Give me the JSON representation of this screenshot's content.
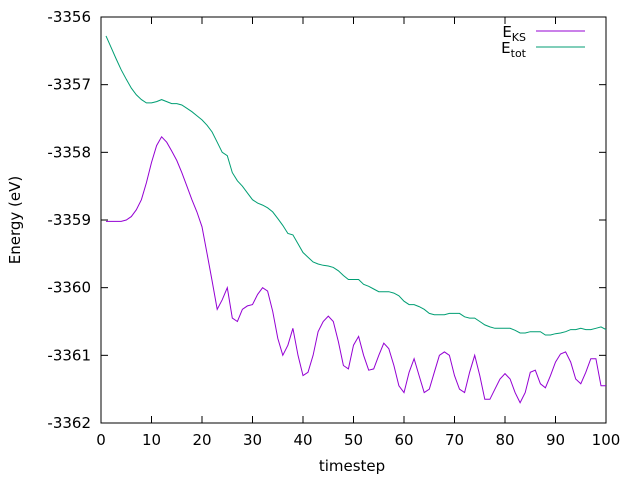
{
  "chart_data": {
    "type": "line",
    "xlabel": "timestep",
    "ylabel": "Energy (eV)",
    "xlim": [
      0,
      100
    ],
    "ylim": [
      -3362,
      -3356
    ],
    "xticks": [
      "0",
      "10",
      "20",
      "30",
      "40",
      "50",
      "60",
      "70",
      "80",
      "90",
      "100"
    ],
    "yticks": [
      "-3356",
      "-3357",
      "-3358",
      "-3359",
      "-3360",
      "-3361",
      "-3362"
    ],
    "grid": false,
    "legend_position": "top-right",
    "series": [
      {
        "name": "E",
        "subscript": "KS",
        "color": "#9400d3",
        "x": [
          1,
          2,
          3,
          4,
          5,
          6,
          7,
          8,
          9,
          10,
          11,
          12,
          13,
          14,
          15,
          16,
          17,
          18,
          19,
          20,
          21,
          22,
          23,
          24,
          25,
          26,
          27,
          28,
          29,
          30,
          31,
          32,
          33,
          34,
          35,
          36,
          37,
          38,
          39,
          40,
          41,
          42,
          43,
          44,
          45,
          46,
          47,
          48,
          49,
          50,
          51,
          52,
          53,
          54,
          55,
          56,
          57,
          58,
          59,
          60,
          61,
          62,
          63,
          64,
          65,
          66,
          67,
          68,
          69,
          70,
          71,
          72,
          73,
          74,
          75,
          76,
          77,
          78,
          79,
          80,
          81,
          82,
          83,
          84,
          85,
          86,
          87,
          88,
          89,
          90,
          91,
          92,
          93,
          94,
          95,
          96,
          97,
          98,
          99,
          100
        ],
        "y": [
          -3359.02,
          -3359.02,
          -3359.02,
          -3359.02,
          -3359.0,
          -3358.95,
          -3358.85,
          -3358.7,
          -3358.45,
          -3358.15,
          -3357.9,
          -3357.77,
          -3357.85,
          -3357.98,
          -3358.12,
          -3358.3,
          -3358.5,
          -3358.7,
          -3358.88,
          -3359.1,
          -3359.5,
          -3359.9,
          -3360.32,
          -3360.18,
          -3360.0,
          -3360.45,
          -3360.5,
          -3360.32,
          -3360.27,
          -3360.25,
          -3360.1,
          -3360.0,
          -3360.05,
          -3360.35,
          -3360.75,
          -3361.0,
          -3360.85,
          -3360.6,
          -3361.0,
          -3361.3,
          -3361.25,
          -3361.0,
          -3360.65,
          -3360.5,
          -3360.42,
          -3360.5,
          -3360.8,
          -3361.15,
          -3361.2,
          -3360.85,
          -3360.72,
          -3361.0,
          -3361.22,
          -3361.2,
          -3361.0,
          -3360.82,
          -3360.9,
          -3361.15,
          -3361.45,
          -3361.55,
          -3361.25,
          -3361.05,
          -3361.3,
          -3361.55,
          -3361.5,
          -3361.25,
          -3361.0,
          -3360.95,
          -3361.0,
          -3361.3,
          -3361.5,
          -3361.55,
          -3361.25,
          -3361.0,
          -3361.3,
          -3361.65,
          -3361.65,
          -3361.5,
          -3361.35,
          -3361.27,
          -3361.35,
          -3361.55,
          -3361.7,
          -3361.55,
          -3361.25,
          -3361.22,
          -3361.42,
          -3361.48,
          -3361.3,
          -3361.1,
          -3360.98,
          -3360.95,
          -3361.1,
          -3361.35,
          -3361.42,
          -3361.25,
          -3361.05,
          -3361.05,
          -3361.45,
          -3361.45
        ]
      },
      {
        "name": "E",
        "subscript": "tot",
        "color": "#009e73",
        "x": [
          1,
          2,
          3,
          4,
          5,
          6,
          7,
          8,
          9,
          10,
          11,
          12,
          13,
          14,
          15,
          16,
          17,
          18,
          19,
          20,
          21,
          22,
          23,
          24,
          25,
          26,
          27,
          28,
          29,
          30,
          31,
          32,
          33,
          34,
          35,
          36,
          37,
          38,
          39,
          40,
          41,
          42,
          43,
          44,
          45,
          46,
          47,
          48,
          49,
          50,
          51,
          52,
          53,
          54,
          55,
          56,
          57,
          58,
          59,
          60,
          61,
          62,
          63,
          64,
          65,
          66,
          67,
          68,
          69,
          70,
          71,
          72,
          73,
          74,
          75,
          76,
          77,
          78,
          79,
          80,
          81,
          82,
          83,
          84,
          85,
          86,
          87,
          88,
          89,
          90,
          91,
          92,
          93,
          94,
          95,
          96,
          97,
          98,
          99,
          100
        ],
        "y": [
          -3356.28,
          -3356.45,
          -3356.62,
          -3356.78,
          -3356.92,
          -3357.05,
          -3357.15,
          -3357.22,
          -3357.27,
          -3357.27,
          -3357.25,
          -3357.22,
          -3357.25,
          -3357.28,
          -3357.28,
          -3357.3,
          -3357.35,
          -3357.4,
          -3357.46,
          -3357.52,
          -3357.6,
          -3357.7,
          -3357.85,
          -3358.0,
          -3358.05,
          -3358.3,
          -3358.42,
          -3358.5,
          -3358.6,
          -3358.7,
          -3358.75,
          -3358.78,
          -3358.82,
          -3358.88,
          -3358.98,
          -3359.08,
          -3359.2,
          -3359.22,
          -3359.35,
          -3359.48,
          -3359.55,
          -3359.62,
          -3359.65,
          -3359.67,
          -3359.68,
          -3359.7,
          -3359.75,
          -3359.82,
          -3359.88,
          -3359.88,
          -3359.88,
          -3359.95,
          -3359.98,
          -3360.02,
          -3360.06,
          -3360.06,
          -3360.06,
          -3360.08,
          -3360.12,
          -3360.2,
          -3360.25,
          -3360.25,
          -3360.28,
          -3360.32,
          -3360.38,
          -3360.4,
          -3360.4,
          -3360.4,
          -3360.38,
          -3360.38,
          -3360.38,
          -3360.43,
          -3360.45,
          -3360.45,
          -3360.5,
          -3360.55,
          -3360.58,
          -3360.6,
          -3360.6,
          -3360.6,
          -3360.6,
          -3360.63,
          -3360.67,
          -3360.67,
          -3360.65,
          -3360.65,
          -3360.65,
          -3360.7,
          -3360.7,
          -3360.68,
          -3360.67,
          -3360.65,
          -3360.62,
          -3360.62,
          -3360.6,
          -3360.62,
          -3360.62,
          -3360.6,
          -3360.58,
          -3360.62
        ]
      }
    ]
  }
}
